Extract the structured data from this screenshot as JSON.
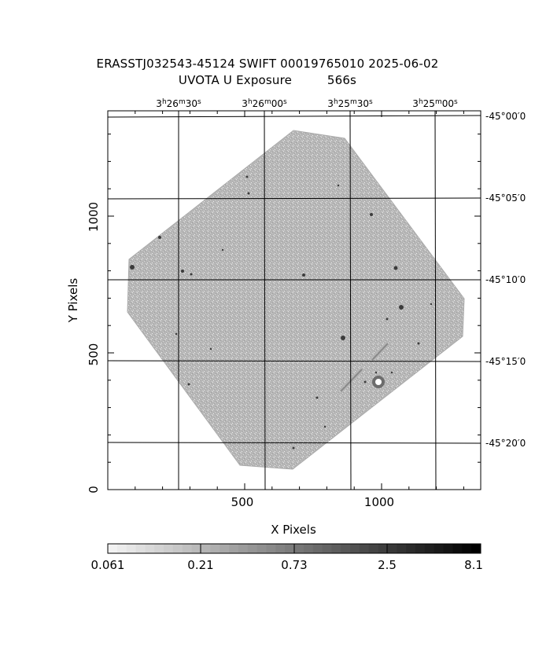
{
  "header": {
    "title": "ERASSTJ032543-45124 SWIFT 00019765010 2025-06-02",
    "subtitle_label": "UVOTA U Exposure",
    "subtitle_value": "566s"
  },
  "axes": {
    "xlabel": "X Pixels",
    "ylabel": "Y Pixels",
    "x_ticks": [
      "500",
      "1000"
    ],
    "y_ticks": [
      "0",
      "500",
      "1000"
    ]
  },
  "ra_ticks": [
    {
      "h": "3",
      "m": "26",
      "s": "30"
    },
    {
      "h": "3",
      "m": "26",
      "s": "00"
    },
    {
      "h": "3",
      "m": "25",
      "s": "30"
    },
    {
      "h": "3",
      "m": "25",
      "s": "00"
    }
  ],
  "dec_ticks": [
    {
      "d": "-45",
      "m": "00",
      "s": "0"
    },
    {
      "d": "-45",
      "m": "05",
      "s": "0"
    },
    {
      "d": "-45",
      "m": "10",
      "s": "0"
    },
    {
      "d": "-45",
      "m": "15",
      "s": "0"
    },
    {
      "d": "-45",
      "m": "20",
      "s": "0"
    }
  ],
  "colorbar": {
    "labels": [
      "0.061",
      "0.21",
      "0.73",
      "2.5",
      "8.1"
    ]
  },
  "colors": {
    "background": "#ffffff",
    "image_fill": "#b4b4b4",
    "grid": "#000000"
  }
}
